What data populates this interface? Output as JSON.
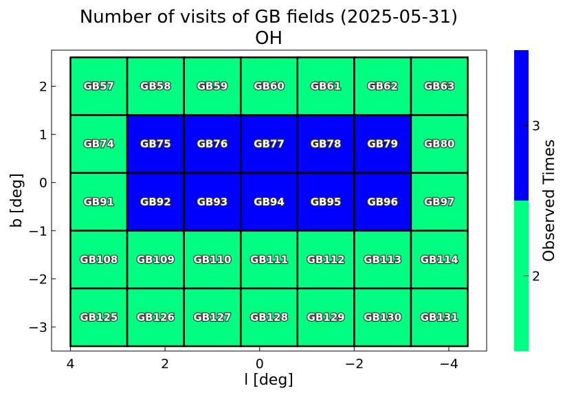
{
  "chart_data": {
    "type": "heatmap",
    "title": "Number of visits of GB fields (2025-05-31)",
    "subtitle": "OH",
    "xlabel": "l [deg]",
    "ylabel": "b [deg]",
    "xlim": [
      4.4,
      -4.8
    ],
    "ylim": [
      -3.5,
      2.75
    ],
    "x_ticks": [
      {
        "value": 4,
        "label": "4"
      },
      {
        "value": 2,
        "label": "2"
      },
      {
        "value": 0,
        "label": "0"
      },
      {
        "value": -2,
        "label": "−2"
      },
      {
        "value": -4,
        "label": "−4"
      }
    ],
    "y_ticks": [
      {
        "value": 2,
        "label": "2"
      },
      {
        "value": 1,
        "label": "1"
      },
      {
        "value": 0,
        "label": "0"
      },
      {
        "value": -1,
        "label": "−1"
      },
      {
        "value": -2,
        "label": "−2"
      },
      {
        "value": -3,
        "label": "−3"
      }
    ],
    "cell_width_deg": 1.2,
    "cell_height_deg": 1.2,
    "fields": [
      {
        "name": "GB57",
        "l": 3.4,
        "b": 2.0,
        "visits": 2
      },
      {
        "name": "GB58",
        "l": 2.2,
        "b": 2.0,
        "visits": 2
      },
      {
        "name": "GB59",
        "l": 1.0,
        "b": 2.0,
        "visits": 2
      },
      {
        "name": "GB60",
        "l": -0.2,
        "b": 2.0,
        "visits": 2
      },
      {
        "name": "GB61",
        "l": -1.4,
        "b": 2.0,
        "visits": 2
      },
      {
        "name": "GB62",
        "l": -2.6,
        "b": 2.0,
        "visits": 2
      },
      {
        "name": "GB63",
        "l": -3.8,
        "b": 2.0,
        "visits": 2
      },
      {
        "name": "GB74",
        "l": 3.4,
        "b": 0.8,
        "visits": 2
      },
      {
        "name": "GB75",
        "l": 2.2,
        "b": 0.8,
        "visits": 3
      },
      {
        "name": "GB76",
        "l": 1.0,
        "b": 0.8,
        "visits": 3
      },
      {
        "name": "GB77",
        "l": -0.2,
        "b": 0.8,
        "visits": 3
      },
      {
        "name": "GB78",
        "l": -1.4,
        "b": 0.8,
        "visits": 3
      },
      {
        "name": "GB79",
        "l": -2.6,
        "b": 0.8,
        "visits": 3
      },
      {
        "name": "GB80",
        "l": -3.8,
        "b": 0.8,
        "visits": 2
      },
      {
        "name": "GB91",
        "l": 3.4,
        "b": -0.4,
        "visits": 2
      },
      {
        "name": "GB92",
        "l": 2.2,
        "b": -0.4,
        "visits": 3
      },
      {
        "name": "GB93",
        "l": 1.0,
        "b": -0.4,
        "visits": 3
      },
      {
        "name": "GB94",
        "l": -0.2,
        "b": -0.4,
        "visits": 3
      },
      {
        "name": "GB95",
        "l": -1.4,
        "b": -0.4,
        "visits": 3
      },
      {
        "name": "GB96",
        "l": -2.6,
        "b": -0.4,
        "visits": 3
      },
      {
        "name": "GB97",
        "l": -3.8,
        "b": -0.4,
        "visits": 2
      },
      {
        "name": "GB108",
        "l": 3.4,
        "b": -1.6,
        "visits": 2
      },
      {
        "name": "GB109",
        "l": 2.2,
        "b": -1.6,
        "visits": 2
      },
      {
        "name": "GB110",
        "l": 1.0,
        "b": -1.6,
        "visits": 2
      },
      {
        "name": "GB111",
        "l": -0.2,
        "b": -1.6,
        "visits": 2
      },
      {
        "name": "GB112",
        "l": -1.4,
        "b": -1.6,
        "visits": 2
      },
      {
        "name": "GB113",
        "l": -2.6,
        "b": -1.6,
        "visits": 2
      },
      {
        "name": "GB114",
        "l": -3.8,
        "b": -1.6,
        "visits": 2
      },
      {
        "name": "GB125",
        "l": 3.4,
        "b": -2.8,
        "visits": 2
      },
      {
        "name": "GB126",
        "l": 2.2,
        "b": -2.8,
        "visits": 2
      },
      {
        "name": "GB127",
        "l": 1.0,
        "b": -2.8,
        "visits": 2
      },
      {
        "name": "GB128",
        "l": -0.2,
        "b": -2.8,
        "visits": 2
      },
      {
        "name": "GB129",
        "l": -1.4,
        "b": -2.8,
        "visits": 2
      },
      {
        "name": "GB130",
        "l": -2.6,
        "b": -2.8,
        "visits": 2
      },
      {
        "name": "GB131",
        "l": -3.8,
        "b": -2.8,
        "visits": 2
      }
    ],
    "colorbar": {
      "label": "Observed Times",
      "range": [
        1.5,
        3.5
      ],
      "bins": [
        {
          "from": 1.5,
          "to": 2.5,
          "color": "#00ff80"
        },
        {
          "from": 2.5,
          "to": 3.5,
          "color": "#0000ff"
        }
      ],
      "ticks": [
        {
          "value": 2,
          "label": "2"
        },
        {
          "value": 3,
          "label": "3"
        }
      ]
    },
    "colors": {
      "2": "#00ff80",
      "3": "#0000ff"
    },
    "grid": false,
    "legend": "colorbar-right"
  }
}
